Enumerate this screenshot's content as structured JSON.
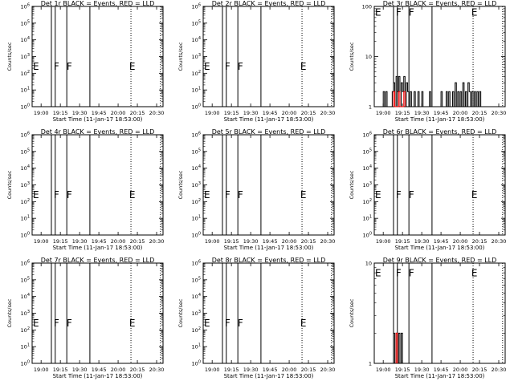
{
  "chart_data": [
    {
      "type": "line",
      "title": "Det 1r BLACK = Events, RED = LLD",
      "xlabel": "Start Time (11-Jan-17 18:53:00)",
      "ylabel": "Counts/sec",
      "yscale": "log",
      "ylim": [
        1,
        1000000
      ],
      "x_ticks": [
        "19:00",
        "19:15",
        "19:30",
        "19:45",
        "20:00",
        "20:15",
        "20:30"
      ],
      "y_ticks": [
        "10^0",
        "10^1",
        "10^2",
        "10^3",
        "10^4",
        "10^5",
        "10^6"
      ],
      "solid_markers": [
        "19:08",
        "19:11",
        "19:20",
        "19:38"
      ],
      "dotted_markers": [
        "20:10",
        "20:33"
      ],
      "flags": [
        {
          "text": "E",
          "x": "18:56"
        },
        {
          "text": "F",
          "x": "19:12"
        },
        {
          "text": "F",
          "x": "19:22"
        },
        {
          "text": "E",
          "x": "20:11"
        }
      ],
      "flag_y": 0.4,
      "series": []
    },
    {
      "type": "line",
      "title": "Det 2r BLACK = Events, RED = LLD",
      "xlabel": "Start Time (11-Jan-17 18:53:00)",
      "ylabel": "Counts/sec",
      "yscale": "log",
      "ylim": [
        1,
        1000000
      ],
      "x_ticks": [
        "19:00",
        "19:15",
        "19:30",
        "19:45",
        "20:00",
        "20:15",
        "20:30"
      ],
      "y_ticks": [
        "10^0",
        "10^1",
        "10^2",
        "10^3",
        "10^4",
        "10^5",
        "10^6"
      ],
      "solid_markers": [
        "19:08",
        "19:11",
        "19:20",
        "19:38"
      ],
      "dotted_markers": [
        "20:10",
        "20:33"
      ],
      "flags": [
        {
          "text": "E",
          "x": "18:56"
        },
        {
          "text": "F",
          "x": "19:12"
        },
        {
          "text": "F",
          "x": "19:22"
        },
        {
          "text": "E",
          "x": "20:11"
        }
      ],
      "flag_y": 0.4,
      "series": []
    },
    {
      "type": "line",
      "title": "Det 3r BLACK = Events, RED = LLD",
      "xlabel": "Start Time (11-Jan-17 18:53:00)",
      "ylabel": "Counts/sec",
      "yscale": "log",
      "ylim": [
        1,
        100
      ],
      "x_ticks": [
        "19:00",
        "19:15",
        "19:30",
        "19:45",
        "20:00",
        "20:15",
        "20:30"
      ],
      "y_ticks": [
        "1",
        "10",
        "100"
      ],
      "solid_markers": [
        "19:08",
        "19:11",
        "19:20",
        "19:38"
      ],
      "dotted_markers": [
        "20:10",
        "20:33"
      ],
      "flags": [
        {
          "text": "E",
          "x": "18:56"
        },
        {
          "text": "F",
          "x": "19:12"
        },
        {
          "text": "F",
          "x": "19:22"
        },
        {
          "text": "E",
          "x": "20:11"
        }
      ],
      "flag_y": 0.94,
      "series": [
        {
          "color": "#000000",
          "points": [
            [
              "19:00",
              1
            ],
            [
              "19:00",
              2
            ],
            [
              "19:01",
              2
            ],
            [
              "19:01",
              1
            ],
            [
              "19:02",
              1
            ],
            [
              "19:02",
              2
            ],
            [
              "19:03",
              2
            ],
            [
              "19:03",
              1
            ],
            [
              "19:07",
              1
            ],
            [
              "19:07",
              2
            ],
            [
              "19:08",
              2
            ],
            [
              "19:08",
              3
            ],
            [
              "19:09",
              3
            ],
            [
              "19:09",
              1
            ],
            [
              "19:10",
              1
            ],
            [
              "19:10",
              4
            ],
            [
              "19:11",
              4
            ],
            [
              "19:11",
              2
            ],
            [
              "19:12",
              2
            ],
            [
              "19:12",
              4
            ],
            [
              "19:13",
              4
            ],
            [
              "19:13",
              1
            ],
            [
              "19:14",
              1
            ],
            [
              "19:14",
              3
            ],
            [
              "19:15",
              3
            ],
            [
              "19:15",
              2
            ],
            [
              "19:16",
              2
            ],
            [
              "19:16",
              4
            ],
            [
              "19:17",
              4
            ],
            [
              "19:17",
              1
            ],
            [
              "19:18",
              1
            ],
            [
              "19:18",
              3
            ],
            [
              "19:19",
              3
            ],
            [
              "19:19",
              2
            ],
            [
              "19:20",
              2
            ],
            [
              "19:20",
              1
            ],
            [
              "19:21",
              1
            ],
            [
              "19:21",
              2
            ],
            [
              "19:22",
              2
            ],
            [
              "19:22",
              1
            ],
            [
              "19:24",
              1
            ],
            [
              "19:24",
              2
            ],
            [
              "19:25",
              2
            ],
            [
              "19:25",
              1
            ],
            [
              "19:27",
              1
            ],
            [
              "19:27",
              2
            ],
            [
              "19:28",
              2
            ],
            [
              "19:28",
              1
            ],
            [
              "19:30",
              1
            ],
            [
              "19:30",
              2
            ],
            [
              "19:31",
              2
            ],
            [
              "19:31",
              1
            ],
            [
              "19:36",
              1
            ],
            [
              "19:36",
              2
            ],
            [
              "19:37",
              2
            ],
            [
              "19:37",
              1
            ],
            [
              "19:45",
              1
            ],
            [
              "19:45",
              2
            ],
            [
              "19:46",
              2
            ],
            [
              "19:46",
              1
            ],
            [
              "19:49",
              1
            ],
            [
              "19:49",
              2
            ],
            [
              "19:50",
              2
            ],
            [
              "19:50",
              1
            ],
            [
              "19:51",
              1
            ],
            [
              "19:51",
              2
            ],
            [
              "19:52",
              2
            ],
            [
              "19:52",
              1
            ],
            [
              "19:54",
              1
            ],
            [
              "19:54",
              2
            ],
            [
              "19:55",
              2
            ],
            [
              "19:55",
              1
            ],
            [
              "19:56",
              1
            ],
            [
              "19:56",
              3
            ],
            [
              "19:57",
              3
            ],
            [
              "19:57",
              1
            ],
            [
              "19:58",
              1
            ],
            [
              "19:58",
              2
            ],
            [
              "19:59",
              2
            ],
            [
              "19:59",
              1
            ],
            [
              "20:00",
              1
            ],
            [
              "20:00",
              2
            ],
            [
              "20:01",
              2
            ],
            [
              "20:01",
              1
            ],
            [
              "20:02",
              1
            ],
            [
              "20:02",
              3
            ],
            [
              "20:03",
              3
            ],
            [
              "20:03",
              1
            ],
            [
              "20:04",
              1
            ],
            [
              "20:04",
              2
            ],
            [
              "20:05",
              2
            ],
            [
              "20:05",
              1
            ],
            [
              "20:06",
              1
            ],
            [
              "20:06",
              3
            ],
            [
              "20:07",
              3
            ],
            [
              "20:07",
              2
            ],
            [
              "20:08",
              2
            ],
            [
              "20:08",
              1
            ],
            [
              "20:09",
              1
            ],
            [
              "20:09",
              2
            ],
            [
              "20:10",
              2
            ],
            [
              "20:10",
              1
            ],
            [
              "20:11",
              1
            ],
            [
              "20:11",
              2
            ],
            [
              "20:12",
              2
            ],
            [
              "20:12",
              1
            ],
            [
              "20:13",
              1
            ],
            [
              "20:13",
              2
            ],
            [
              "20:14",
              2
            ],
            [
              "20:14",
              1
            ],
            [
              "20:15",
              1
            ],
            [
              "20:15",
              2
            ],
            [
              "20:16",
              2
            ],
            [
              "20:16",
              1
            ]
          ]
        },
        {
          "color": "#ff0000",
          "points": [
            [
              "19:08",
              1
            ],
            [
              "19:08",
              2
            ],
            [
              "19:09",
              2
            ],
            [
              "19:09",
              1
            ],
            [
              "19:12",
              1
            ],
            [
              "19:12",
              2
            ],
            [
              "19:13",
              2
            ],
            [
              "19:13",
              1
            ],
            [
              "19:16",
              1
            ],
            [
              "19:16",
              2
            ],
            [
              "19:17",
              2
            ],
            [
              "19:17",
              1
            ]
          ]
        }
      ]
    },
    {
      "type": "line",
      "title": "Det 4r BLACK = Events, RED = LLD",
      "xlabel": "Start Time (11-Jan-17 18:53:00)",
      "ylabel": "Counts/sec",
      "yscale": "log",
      "ylim": [
        1,
        1000000
      ],
      "x_ticks": [
        "19:00",
        "19:15",
        "19:30",
        "19:45",
        "20:00",
        "20:15",
        "20:30"
      ],
      "y_ticks": [
        "10^0",
        "10^1",
        "10^2",
        "10^3",
        "10^4",
        "10^5",
        "10^6"
      ],
      "solid_markers": [
        "19:08",
        "19:11",
        "19:20",
        "19:38"
      ],
      "dotted_markers": [
        "20:10",
        "20:33"
      ],
      "flags": [
        {
          "text": "E",
          "x": "18:56"
        },
        {
          "text": "F",
          "x": "19:12"
        },
        {
          "text": "F",
          "x": "19:22"
        },
        {
          "text": "E",
          "x": "20:11"
        }
      ],
      "flag_y": 0.4,
      "series": []
    },
    {
      "type": "line",
      "title": "Det 5r BLACK = Events, RED = LLD",
      "xlabel": "Start Time (11-Jan-17 18:53:00)",
      "ylabel": "Counts/sec",
      "yscale": "log",
      "ylim": [
        1,
        1000000
      ],
      "x_ticks": [
        "19:00",
        "19:15",
        "19:30",
        "19:45",
        "20:00",
        "20:15",
        "20:30"
      ],
      "y_ticks": [
        "10^0",
        "10^1",
        "10^2",
        "10^3",
        "10^4",
        "10^5",
        "10^6"
      ],
      "solid_markers": [
        "19:08",
        "19:11",
        "19:20",
        "19:38"
      ],
      "dotted_markers": [
        "20:10",
        "20:33"
      ],
      "flags": [
        {
          "text": "E",
          "x": "18:56"
        },
        {
          "text": "F",
          "x": "19:12"
        },
        {
          "text": "F",
          "x": "19:22"
        },
        {
          "text": "E",
          "x": "20:11"
        }
      ],
      "flag_y": 0.4,
      "series": []
    },
    {
      "type": "line",
      "title": "Det 6r BLACK = Events, RED = LLD",
      "xlabel": "Start Time (11-Jan-17 18:53:00)",
      "ylabel": "Counts/sec",
      "yscale": "log",
      "ylim": [
        1,
        1000000
      ],
      "x_ticks": [
        "19:00",
        "19:15",
        "19:30",
        "19:45",
        "20:00",
        "20:15",
        "20:30"
      ],
      "y_ticks": [
        "10^0",
        "10^1",
        "10^2",
        "10^3",
        "10^4",
        "10^5",
        "10^6"
      ],
      "solid_markers": [
        "19:08",
        "19:11",
        "19:20",
        "19:38"
      ],
      "dotted_markers": [
        "20:10",
        "20:33"
      ],
      "flags": [
        {
          "text": "E",
          "x": "18:56"
        },
        {
          "text": "F",
          "x": "19:12"
        },
        {
          "text": "F",
          "x": "19:22"
        },
        {
          "text": "E",
          "x": "20:11"
        }
      ],
      "flag_y": 0.4,
      "series": []
    },
    {
      "type": "line",
      "title": "Det 7r BLACK = Events, RED = LLD",
      "xlabel": "Start Time (11-Jan-17 18:53:00)",
      "ylabel": "Counts/sec",
      "yscale": "log",
      "ylim": [
        1,
        1000000
      ],
      "x_ticks": [
        "19:00",
        "19:15",
        "19:30",
        "19:45",
        "20:00",
        "20:15",
        "20:30"
      ],
      "y_ticks": [
        "10^0",
        "10^1",
        "10^2",
        "10^3",
        "10^4",
        "10^5",
        "10^6"
      ],
      "solid_markers": [
        "19:08",
        "19:11",
        "19:20",
        "19:38"
      ],
      "dotted_markers": [
        "20:10",
        "20:33"
      ],
      "flags": [
        {
          "text": "E",
          "x": "18:56"
        },
        {
          "text": "F",
          "x": "19:12"
        },
        {
          "text": "F",
          "x": "19:22"
        },
        {
          "text": "E",
          "x": "20:11"
        }
      ],
      "flag_y": 0.4,
      "series": []
    },
    {
      "type": "line",
      "title": "Det 8r BLACK = Events, RED = LLD",
      "xlabel": "Start Time (11-Jan-17 18:53:00)",
      "ylabel": "Counts/sec",
      "yscale": "log",
      "ylim": [
        1,
        1000000
      ],
      "x_ticks": [
        "19:00",
        "19:15",
        "19:30",
        "19:45",
        "20:00",
        "20:15",
        "20:30"
      ],
      "y_ticks": [
        "10^0",
        "10^1",
        "10^2",
        "10^3",
        "10^4",
        "10^5",
        "10^6"
      ],
      "solid_markers": [
        "19:08",
        "19:11",
        "19:20",
        "19:38"
      ],
      "dotted_markers": [
        "20:10",
        "20:33"
      ],
      "flags": [
        {
          "text": "E",
          "x": "18:56"
        },
        {
          "text": "F",
          "x": "19:12"
        },
        {
          "text": "F",
          "x": "19:22"
        },
        {
          "text": "E",
          "x": "20:11"
        }
      ],
      "flag_y": 0.4,
      "series": []
    },
    {
      "type": "line",
      "title": "Det 9r BLACK = Events, RED = LLD",
      "xlabel": "Start Time (11-Jan-17 18:53:00)",
      "ylabel": "Counts/sec",
      "yscale": "log",
      "ylim": [
        1,
        10
      ],
      "x_ticks": [
        "19:00",
        "19:15",
        "19:30",
        "19:45",
        "20:00",
        "20:15",
        "20:30"
      ],
      "y_ticks": [
        "1",
        "10"
      ],
      "solid_markers": [
        "19:08",
        "19:11",
        "19:20",
        "19:38"
      ],
      "dotted_markers": [
        "20:10",
        "20:33"
      ],
      "flags": [
        {
          "text": "E",
          "x": "18:56"
        },
        {
          "text": "F",
          "x": "19:12"
        },
        {
          "text": "F",
          "x": "19:22"
        },
        {
          "text": "E",
          "x": "20:11"
        }
      ],
      "flag_y": 0.9,
      "series": [
        {
          "color": "#000000",
          "points": [
            [
              "19:08",
              1
            ],
            [
              "19:08",
              2
            ],
            [
              "19:09",
              2
            ],
            [
              "19:09",
              1
            ],
            [
              "19:10",
              1
            ],
            [
              "19:10",
              2
            ],
            [
              "19:11",
              2
            ],
            [
              "19:11",
              1
            ],
            [
              "19:12",
              1
            ],
            [
              "19:12",
              2
            ],
            [
              "19:13",
              2
            ],
            [
              "19:13",
              1
            ],
            [
              "19:14",
              1
            ],
            [
              "19:14",
              2
            ],
            [
              "19:15",
              2
            ],
            [
              "19:15",
              1
            ]
          ]
        },
        {
          "color": "#ff0000",
          "points": [
            [
              "19:10",
              1
            ],
            [
              "19:10",
              2
            ],
            [
              "19:11",
              2
            ],
            [
              "19:11",
              1
            ]
          ]
        }
      ]
    }
  ]
}
